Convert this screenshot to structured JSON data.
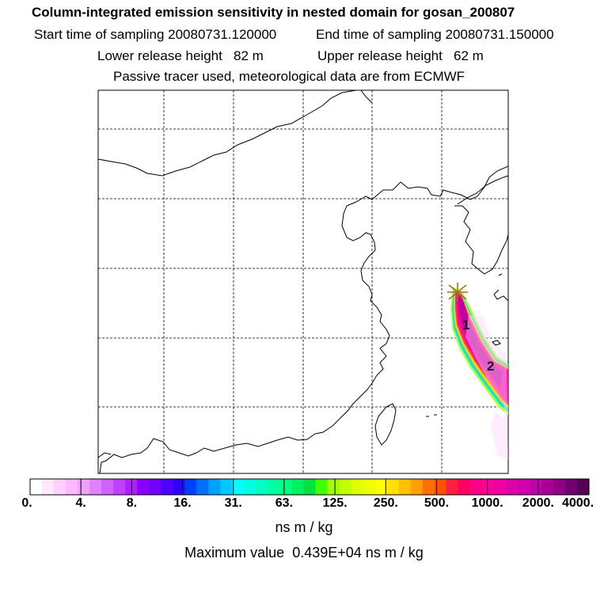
{
  "title": "Column-integrated emission sensitivity in nested domain for gosan_200807",
  "start_label": "Start time of sampling",
  "start_value": "20080731.120000",
  "end_label": "End time of sampling",
  "end_value": "20080731.150000",
  "lower_label": "Lower release height",
  "lower_value": "82 m",
  "upper_label": "Upper release height",
  "upper_value": "62 m",
  "subtitle": "Passive tracer used, meteorological data are from ECMWF",
  "markers": [
    {
      "label": "1"
    },
    {
      "label": "2"
    }
  ],
  "colorbar": {
    "ticks": [
      "0.",
      "4.",
      "8.",
      "16.",
      "31.",
      "63.",
      "125.",
      "250.",
      "500.",
      "1000.",
      "2000.",
      "4000."
    ],
    "colors": [
      "#ffffff",
      "#ffe8ff",
      "#ffd0ff",
      "#ffb8ff",
      "#f0a0ff",
      "#e080ff",
      "#d060ff",
      "#c040ff",
      "#b020ff",
      "#8800ff",
      "#7000ff",
      "#5000ff",
      "#3000ff",
      "#0040ff",
      "#0070ff",
      "#00a0ff",
      "#00c8ff",
      "#00ffff",
      "#00ffe0",
      "#00ffc0",
      "#00ffa0",
      "#00ff80",
      "#00f060",
      "#00e040",
      "#40ff00",
      "#a0ff00",
      "#c0ff00",
      "#e0ff00",
      "#f0ff00",
      "#ffff00",
      "#ffe000",
      "#ffc000",
      "#ffa000",
      "#ff7000",
      "#ff5000",
      "#ff2040",
      "#ff0060",
      "#ff0088",
      "#ff0099",
      "#f000a0",
      "#e000a8",
      "#d000b0",
      "#c000a8",
      "#a80098",
      "#900088",
      "#700070",
      "#580058"
    ],
    "units": "ns m / kg"
  },
  "max_label": "Maximum value",
  "max_value": "0.439E+04 ns m / kg"
}
